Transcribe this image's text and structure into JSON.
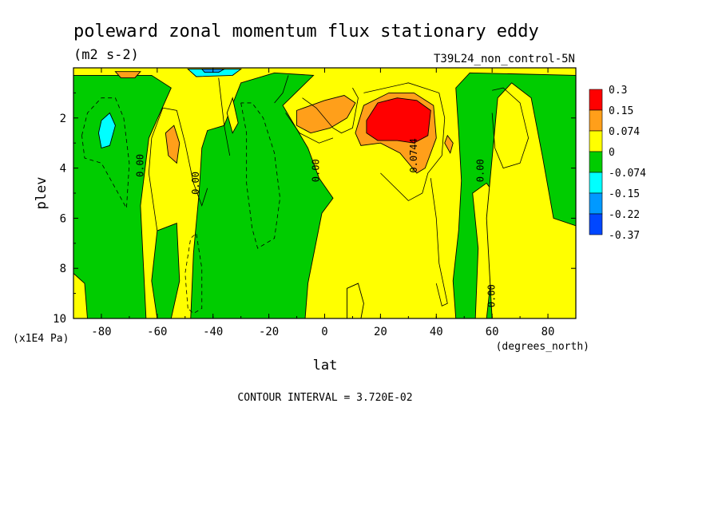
{
  "chart_data": {
    "type": "heatmap",
    "title": "poleward zonal momentum flux stationary eddy",
    "units": "(m2 s-2)",
    "run_label": "T39L24_non_control-5N",
    "xlabel": "lat",
    "ylabel": "plev",
    "x_units": "(degrees_north)",
    "y_units": "(x1E4 Pa)",
    "xlim": [
      -90,
      90
    ],
    "ylim": [
      10,
      0
    ],
    "x_ticks": [
      -80,
      -60,
      -40,
      -20,
      0,
      20,
      40,
      60,
      80
    ],
    "x_tick_labels": [
      "-80",
      "-60",
      "-40",
      "-20",
      "0",
      "20",
      "40",
      "60",
      "80"
    ],
    "y_ticks": [
      2,
      4,
      6,
      8,
      10
    ],
    "y_tick_labels": [
      "2",
      "4",
      "6",
      "8",
      "10"
    ],
    "contour_interval_text": "CONTOUR INTERVAL = 3.720E-02",
    "legend": {
      "placement": "right",
      "levels": [
        {
          "label": "0.3",
          "color": "#ff0000"
        },
        {
          "label": "0.15",
          "color": "#ff9f1a"
        },
        {
          "label": "0.074",
          "color": "#ffff00"
        },
        {
          "label": "0",
          "color": "#00cc00"
        },
        {
          "label": "-0.074",
          "color": "#00ffff"
        },
        {
          "label": "-0.15",
          "color": "#0099ff"
        },
        {
          "label": "-0.22",
          "color": "#0047ff"
        },
        {
          "label": "-0.37",
          "color": null
        }
      ]
    },
    "contour_labels": [
      {
        "text": "0.00",
        "lat": -65,
        "plev": 3.9
      },
      {
        "text": "0.00",
        "lat": -45,
        "plev": 4.6
      },
      {
        "text": "0.00",
        "lat": -2,
        "plev": 4.1
      },
      {
        "text": "0.0744",
        "lat": 33,
        "plev": 3.5
      },
      {
        "text": "0.00",
        "lat": 57,
        "plev": 4.1
      },
      {
        "text": "0.00",
        "lat": 61,
        "plev": 9.1
      }
    ],
    "regions": [
      {
        "fill": "yellow",
        "points": [
          [
            -90,
            0
          ],
          [
            90,
            0
          ],
          [
            90,
            10
          ],
          [
            -90,
            10
          ]
        ]
      },
      {
        "fill": "green",
        "points": [
          [
            -90,
            0.3
          ],
          [
            -62,
            0.3
          ],
          [
            -55,
            0.8
          ],
          [
            -63,
            2.8
          ],
          [
            -66,
            5.5
          ],
          [
            -64,
            10
          ],
          [
            -90,
            10
          ]
        ]
      },
      {
        "fill": "yellow",
        "points": [
          [
            -90,
            8.2
          ],
          [
            -86,
            8.6
          ],
          [
            -85,
            10
          ],
          [
            -90,
            10
          ]
        ]
      },
      {
        "fill": "green",
        "points": [
          [
            -60,
            6.5
          ],
          [
            -53,
            6.2
          ],
          [
            -52,
            8.5
          ],
          [
            -55,
            10
          ],
          [
            -60,
            10
          ],
          [
            -62,
            8.5
          ]
        ]
      },
      {
        "fill": "green",
        "points": [
          [
            -42,
            2.5
          ],
          [
            -36,
            2.3
          ],
          [
            -30,
            0.6
          ],
          [
            -18,
            0.2
          ],
          [
            -4,
            0.3
          ],
          [
            -15,
            1.5
          ],
          [
            -6,
            3.2
          ],
          [
            -2,
            4.4
          ],
          [
            3,
            5.2
          ],
          [
            -1,
            5.8
          ],
          [
            -6,
            8.6
          ],
          [
            -7,
            10
          ],
          [
            -48,
            10
          ],
          [
            -47,
            7.4
          ],
          [
            -45,
            5
          ],
          [
            -44,
            3.2
          ]
        ]
      },
      {
        "fill": "yellow",
        "points": [
          [
            -35,
            1.8
          ],
          [
            -33,
            1.2
          ],
          [
            -31,
            2.2
          ],
          [
            -33,
            2.6
          ]
        ]
      },
      {
        "fill": "green",
        "points": [
          [
            47,
            0.8
          ],
          [
            52,
            0.2
          ],
          [
            90,
            0.3
          ],
          [
            90,
            10
          ],
          [
            47,
            10
          ],
          [
            46,
            8.5
          ],
          [
            48,
            6.5
          ],
          [
            49,
            4.5
          ],
          [
            48,
            2.5
          ]
        ]
      },
      {
        "fill": "yellow",
        "points": [
          [
            53,
            5
          ],
          [
            58,
            4.6
          ],
          [
            62,
            5.2
          ],
          [
            61,
            7
          ],
          [
            58,
            10
          ],
          [
            54,
            10
          ],
          [
            55,
            7.2
          ]
        ]
      },
      {
        "fill": "yellow",
        "points": [
          [
            58,
            6
          ],
          [
            62,
            1.2
          ],
          [
            67,
            0.6
          ],
          [
            74,
            1.2
          ],
          [
            78,
            3.5
          ],
          [
            82,
            6
          ],
          [
            90,
            6.3
          ],
          [
            90,
            10
          ],
          [
            60,
            10
          ]
        ]
      },
      {
        "fill": "yellow",
        "points": [
          [
            8,
            8.8
          ],
          [
            12,
            8.6
          ],
          [
            14,
            9.4
          ],
          [
            13,
            10
          ],
          [
            8,
            10
          ]
        ]
      },
      {
        "fill": "orange",
        "points": [
          [
            -10,
            1.7
          ],
          [
            0,
            1.3
          ],
          [
            7,
            1.1
          ],
          [
            11,
            1.4
          ],
          [
            8,
            2.0
          ],
          [
            2,
            2.4
          ],
          [
            -5,
            2.6
          ],
          [
            -10,
            2.3
          ]
        ]
      },
      {
        "fill": "orange",
        "points": [
          [
            11,
            2.6
          ],
          [
            14,
            1.5
          ],
          [
            23,
            1.0
          ],
          [
            32,
            1.0
          ],
          [
            39,
            1.5
          ],
          [
            40,
            2.8
          ],
          [
            36,
            4.0
          ],
          [
            33,
            4.2
          ],
          [
            27,
            3.4
          ],
          [
            20,
            3.0
          ],
          [
            13,
            3.1
          ]
        ]
      },
      {
        "fill": "red",
        "points": [
          [
            15,
            2.1
          ],
          [
            19,
            1.4
          ],
          [
            26,
            1.2
          ],
          [
            33,
            1.3
          ],
          [
            38,
            1.7
          ],
          [
            37,
            2.7
          ],
          [
            32,
            3.0
          ],
          [
            26,
            2.9
          ],
          [
            19,
            2.9
          ],
          [
            15,
            2.6
          ]
        ]
      },
      {
        "fill": "orange",
        "points": [
          [
            -57,
            2.6
          ],
          [
            -54,
            2.3
          ],
          [
            -52,
            3.0
          ],
          [
            -53,
            3.8
          ],
          [
            -56,
            3.5
          ]
        ]
      },
      {
        "fill": "orange",
        "points": [
          [
            44,
            2.7
          ],
          [
            46,
            3.0
          ],
          [
            45,
            3.4
          ],
          [
            43,
            3.0
          ]
        ]
      },
      {
        "fill": "orange",
        "points": [
          [
            -75,
            0.15
          ],
          [
            -66,
            0.15
          ],
          [
            -68,
            0.4
          ],
          [
            -73,
            0.4
          ]
        ]
      },
      {
        "fill": "cyan",
        "points": [
          [
            -80,
            2.1
          ],
          [
            -77,
            1.8
          ],
          [
            -75,
            2.3
          ],
          [
            -77,
            3.1
          ],
          [
            -80,
            3.2
          ],
          [
            -81,
            2.6
          ]
        ]
      },
      {
        "fill": "cyan",
        "points": [
          [
            -49,
            0.05
          ],
          [
            -30,
            0.05
          ],
          [
            -33,
            0.3
          ],
          [
            -46,
            0.35
          ]
        ]
      },
      {
        "fill": "blue",
        "points": [
          [
            -44,
            0.05
          ],
          [
            -36,
            0.05
          ],
          [
            -38,
            0.18
          ],
          [
            -43,
            0.18
          ]
        ]
      }
    ],
    "contour_lines": [
      {
        "style": "solid",
        "points": [
          [
            -60,
            6.5
          ],
          [
            -63,
            4.2
          ],
          [
            -62,
            2.8
          ],
          [
            -58,
            1.6
          ],
          [
            -53,
            1.7
          ],
          [
            -50,
            3.0
          ],
          [
            -47,
            4.6
          ],
          [
            -44,
            5.5
          ],
          [
            -42,
            4.8
          ]
        ]
      },
      {
        "style": "solid",
        "points": [
          [
            -38,
            0.4
          ],
          [
            -36,
            2.3
          ],
          [
            -34,
            3.5
          ]
        ]
      },
      {
        "style": "solid",
        "points": [
          [
            -13,
            0.3
          ],
          [
            -15,
            1.0
          ],
          [
            -18,
            1.4
          ]
        ]
      },
      {
        "style": "solid",
        "points": [
          [
            -8,
            1.2
          ],
          [
            -3,
            1.6
          ],
          [
            3,
            2.4
          ],
          [
            6,
            2.6
          ],
          [
            10,
            2.4
          ],
          [
            12,
            1.2
          ],
          [
            10,
            0.8
          ]
        ]
      },
      {
        "style": "solid",
        "points": [
          [
            -14,
            1.8
          ],
          [
            -9,
            2.6
          ],
          [
            -2,
            3.0
          ],
          [
            3,
            2.8
          ]
        ]
      },
      {
        "style": "solid",
        "points": [
          [
            14,
            1.0
          ],
          [
            30,
            0.6
          ],
          [
            41,
            1.0
          ],
          [
            43,
            2.0
          ],
          [
            42,
            3.5
          ],
          [
            37,
            4.2
          ],
          [
            35,
            5.0
          ],
          [
            30,
            5.3
          ],
          [
            20,
            4.2
          ]
        ]
      },
      {
        "style": "solid",
        "points": [
          [
            60,
            0.9
          ],
          [
            64,
            0.8
          ],
          [
            70,
            1.4
          ],
          [
            73,
            2.8
          ],
          [
            70,
            3.8
          ],
          [
            64,
            4.0
          ],
          [
            61,
            3.2
          ],
          [
            60,
            1.8
          ]
        ]
      },
      {
        "style": "solid",
        "points": [
          [
            38,
            4.4
          ],
          [
            40,
            6.0
          ],
          [
            41,
            7.8
          ],
          [
            44,
            9.4
          ],
          [
            42,
            9.5
          ],
          [
            40,
            8.6
          ]
        ]
      },
      {
        "style": "dashed",
        "points": [
          [
            -87,
            2.7
          ],
          [
            -85,
            1.8
          ],
          [
            -80,
            1.2
          ],
          [
            -75,
            1.2
          ],
          [
            -72,
            2.0
          ],
          [
            -70,
            3.8
          ],
          [
            -71,
            5.6
          ],
          [
            -75,
            4.8
          ],
          [
            -80,
            3.8
          ],
          [
            -86,
            3.6
          ],
          [
            -87,
            2.7
          ]
        ]
      },
      {
        "style": "dashed",
        "points": [
          [
            -49,
            9.6
          ],
          [
            -50,
            8.2
          ],
          [
            -48,
            6.8
          ],
          [
            -46,
            6.6
          ],
          [
            -44,
            8.0
          ],
          [
            -44,
            9.6
          ],
          [
            -47,
            9.8
          ],
          [
            -49,
            9.6
          ]
        ]
      },
      {
        "style": "dashed",
        "points": [
          [
            -30,
            1.4
          ],
          [
            -28,
            2.6
          ],
          [
            -28,
            4.6
          ],
          [
            -26,
            6.4
          ],
          [
            -24,
            7.2
          ],
          [
            -18,
            6.8
          ],
          [
            -16,
            5.2
          ],
          [
            -18,
            3.4
          ],
          [
            -22,
            2.0
          ],
          [
            -26,
            1.4
          ],
          [
            -30,
            1.4
          ]
        ]
      }
    ]
  }
}
